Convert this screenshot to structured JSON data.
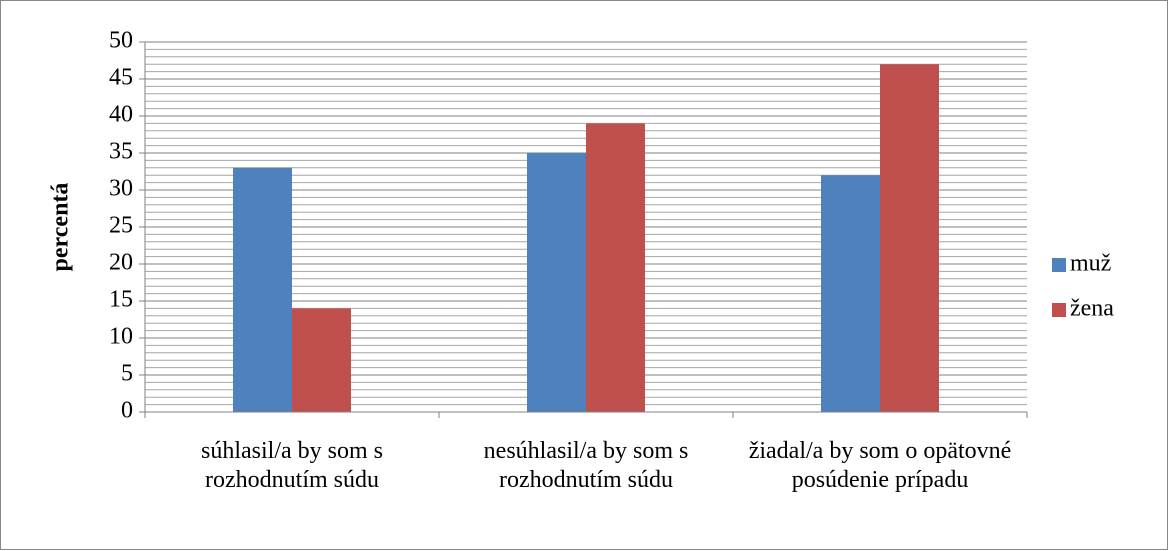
{
  "chart_data": {
    "type": "bar",
    "y_label": "percentá",
    "categories": [
      "súhlasil/a by som s rozhodnutím súdu",
      "nesúhlasil/a by som s rozhodnutím súdu",
      "žiadal/a by som o opätovné posúdenie prípadu"
    ],
    "series": [
      {
        "name": "muž",
        "color": "#4f81bd",
        "values": [
          33,
          35,
          32
        ]
      },
      {
        "name": "žena",
        "color": "#c0504d",
        "values": [
          14,
          39,
          47
        ]
      }
    ],
    "ylim": [
      0,
      50
    ],
    "yticks": [
      0,
      5,
      10,
      15,
      20,
      25,
      30,
      35,
      40,
      45,
      50
    ],
    "grid": true,
    "minor_ystep": 1,
    "legend": "right"
  }
}
